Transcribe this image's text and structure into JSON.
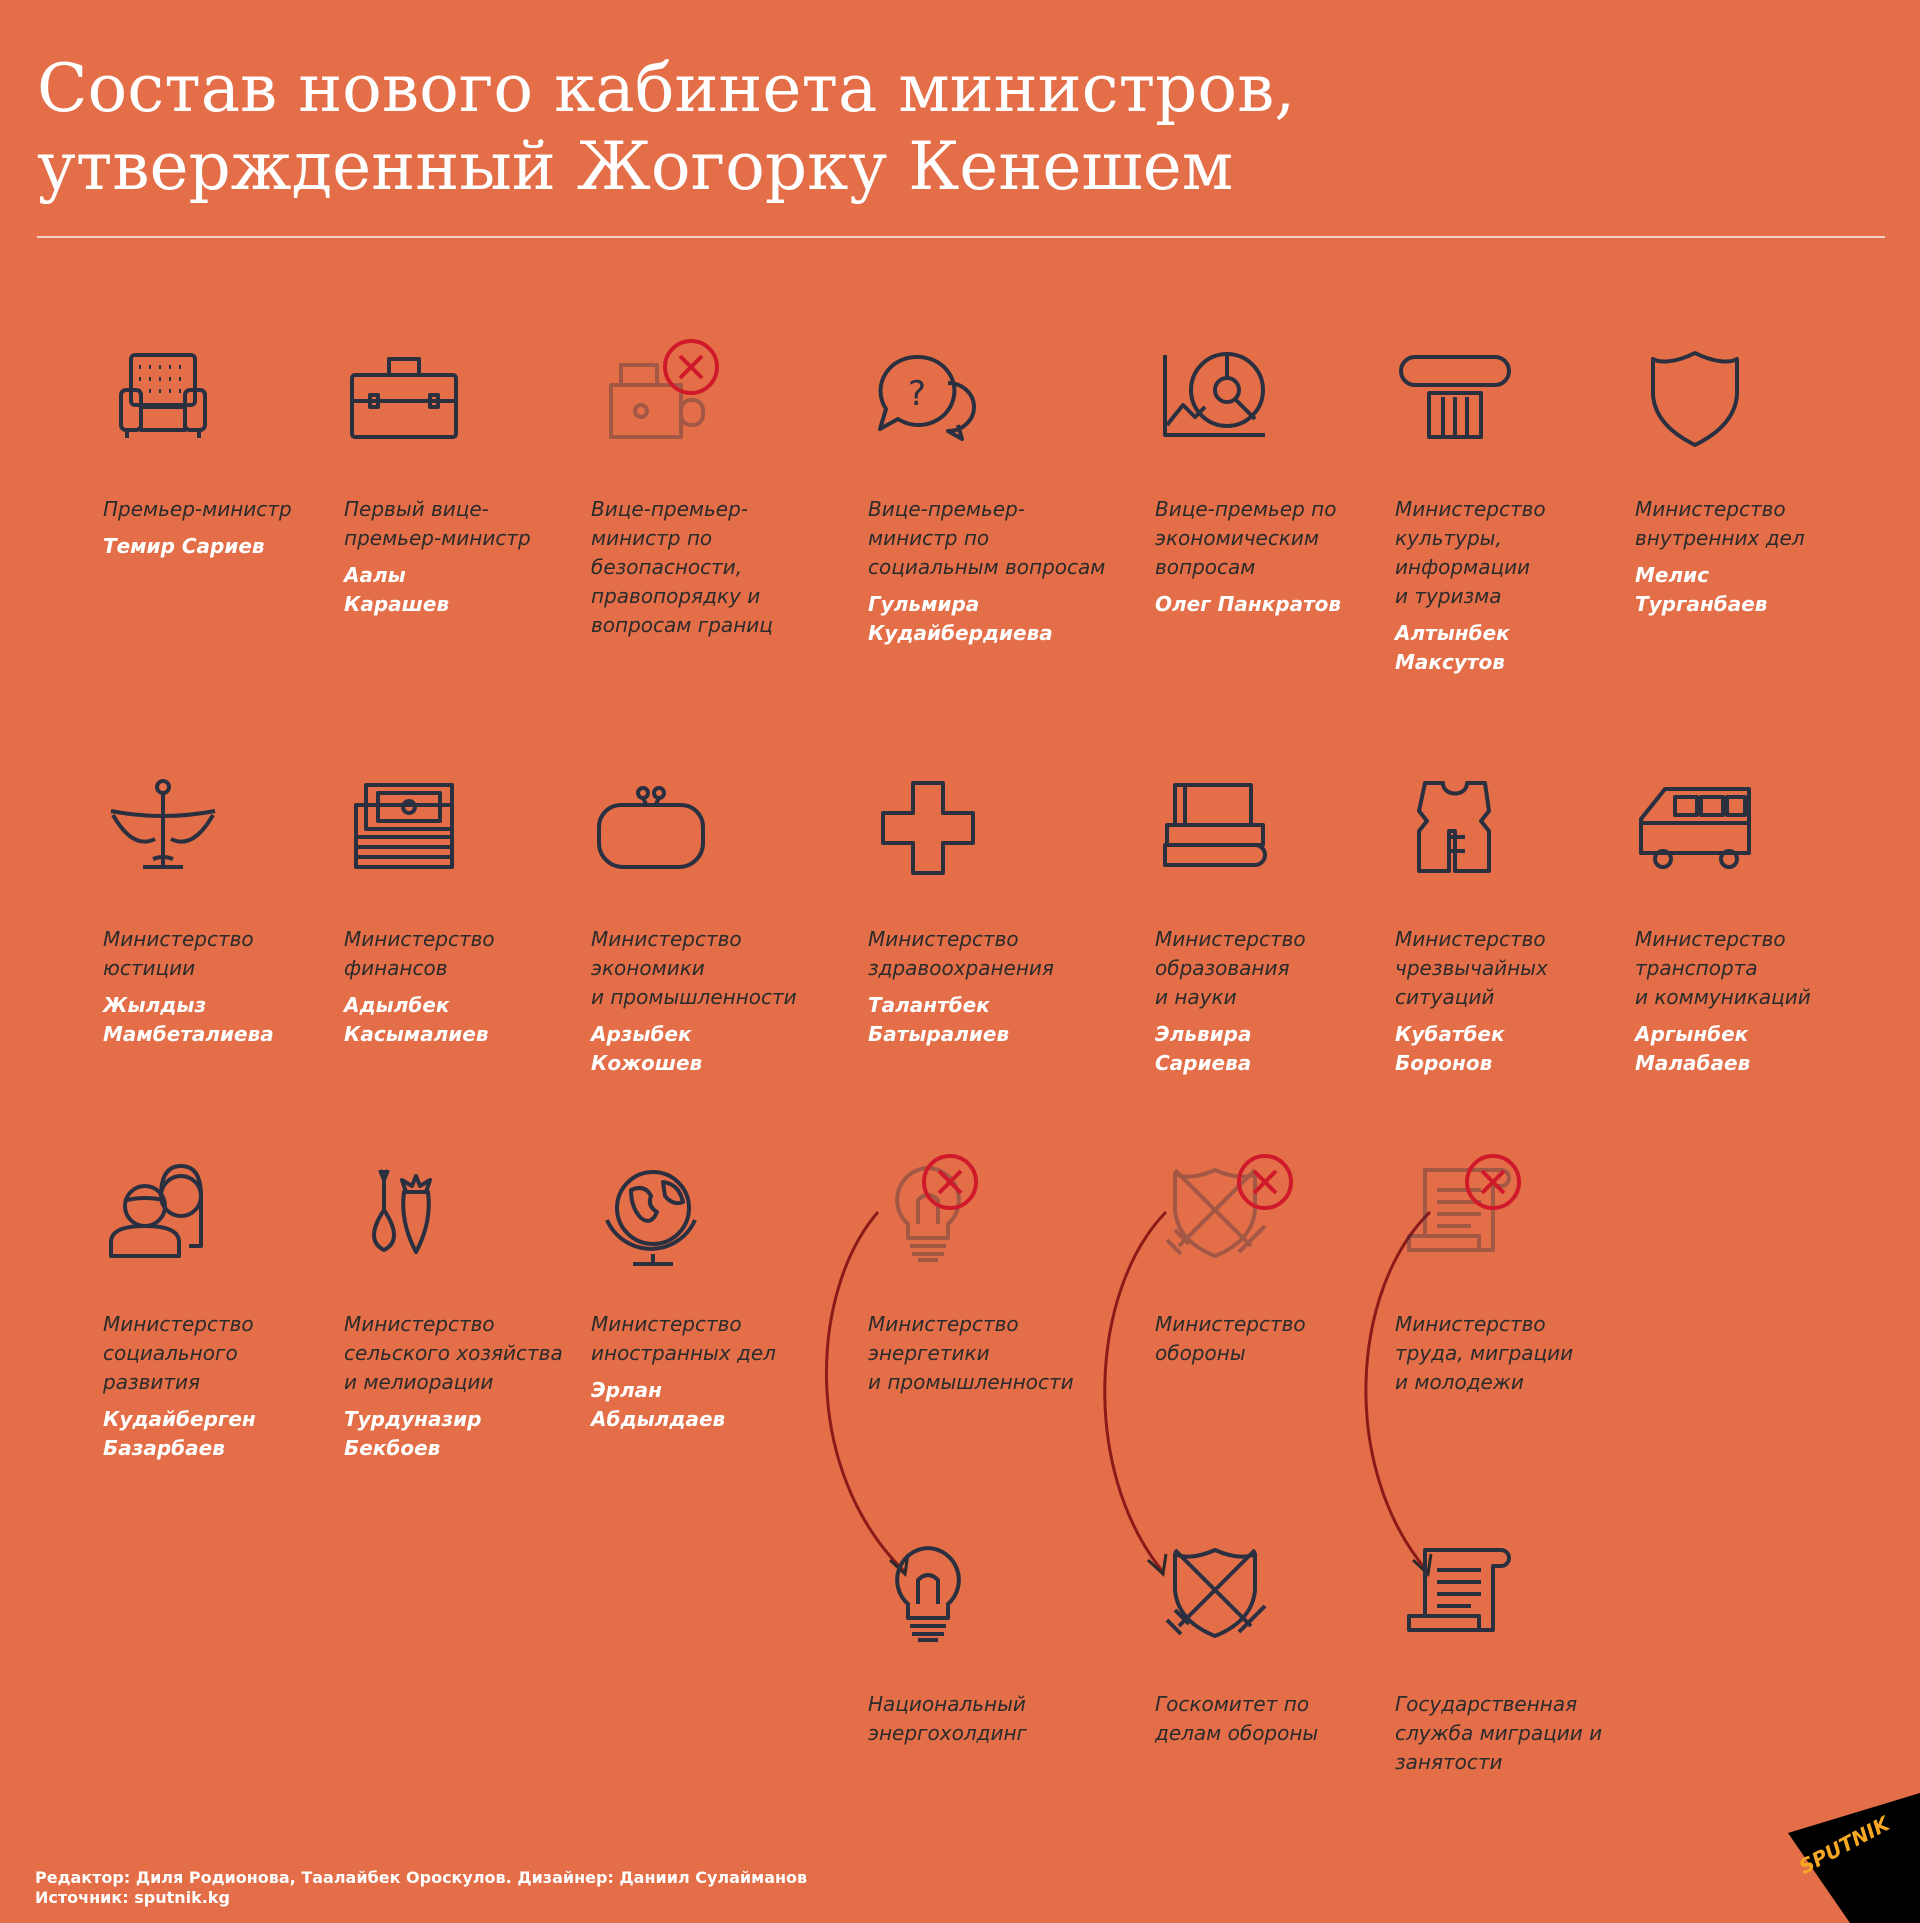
{
  "title": {
    "line1": "Состав нового кабинета министров,",
    "line2": "утвержденный Жогорку Кенешем"
  },
  "colors": {
    "background": "#E36E48",
    "icon": "#2b3040",
    "removed": "#d0192a",
    "arrow": "#8b1a1a"
  },
  "items": [
    {
      "icon": "armchair-icon",
      "label": "Премьер-министр",
      "name": "Темир Сариев"
    },
    {
      "icon": "briefcase-icon",
      "label": "Первый вице-\nпремьер-министр",
      "name": "Аалы\nКарашев"
    },
    {
      "icon": "camera-icon",
      "label": "Вице-премьер-\nминистр по\nбезопасности,\nправопорядку и\nвопросам границ",
      "name": "",
      "removed": true
    },
    {
      "icon": "chat-bubbles-icon",
      "label": "Вице-премьер-\nминистр по\nсоциальным вопросам",
      "name": "Гульмира\nКудайбердиева"
    },
    {
      "icon": "chart-icon",
      "label": "Вице-премьер по\nэкономическим\nвопросам",
      "name": "Олег Панкратов"
    },
    {
      "icon": "column-icon",
      "label": "Министерство\nкультуры,\nинформации\nи туризма",
      "name": "Алтынбек\nМаксутов"
    },
    {
      "icon": "shield-icon",
      "label": "Министерство\nвнутренних дел",
      "name": "Мелис\nТурганбаев"
    },
    {
      "icon": "scales-icon",
      "label": "Министерство\nюстиции",
      "name": "Жылдыз\nМамбеталиева"
    },
    {
      "icon": "money-stack-icon",
      "label": "Министерство\nфинансов",
      "name": "Адылбек\nКасымалиев"
    },
    {
      "icon": "purse-icon",
      "label": "Министерство\nэкономики\nи промышленности",
      "name": "Арзыбек\nКожошев"
    },
    {
      "icon": "medical-cross-icon",
      "label": "Министерство\nздравоохранения",
      "name": "Талантбек\nБатыралиев"
    },
    {
      "icon": "books-icon",
      "label": "Министерство\nобразования\nи науки",
      "name": "Эльвира\nСариева"
    },
    {
      "icon": "life-vest-icon",
      "label": "Министерство\nчрезвычайных\nситуаций",
      "name": "Кубатбек\nБоронов"
    },
    {
      "icon": "bus-icon",
      "label": "Министерство\nтранспорта\nи коммуникаций",
      "name": "Аргынбек\nМалабаев"
    },
    {
      "icon": "family-icon",
      "label": "Министерство\nсоциального\nразвития",
      "name": "Кудайберген\nБазарбаев"
    },
    {
      "icon": "vegetables-icon",
      "label": "Министерство\nсельского хозяйства\nи мелиорации",
      "name": "Турдуназир\nБекбоев"
    },
    {
      "icon": "globe-icon",
      "label": "Министерство\nиностранных дел",
      "name": "Эрлан\nАбдылдаев"
    },
    {
      "icon": "lightbulb-icon",
      "label": "Министерство\nэнергетики\nи промышленности",
      "name": "",
      "removed": true
    },
    {
      "icon": "crossed-swords-icon",
      "label": "Министерство\nобороны",
      "name": "",
      "removed": true
    },
    {
      "icon": "scroll-icon",
      "label": "Министерство\nтруда, миграции\nи молодежи",
      "name": "",
      "removed": true
    },
    {
      "icon": "lightbulb-icon",
      "label": "Национальный\nэнергохолдинг",
      "name": ""
    },
    {
      "icon": "crossed-swords-icon",
      "label": "Госкомитет по\nделам обороны",
      "name": ""
    },
    {
      "icon": "scroll-icon",
      "label": "Государственная\nслужба миграции и\nзанятости",
      "name": ""
    }
  ],
  "credits": {
    "line1": "Редактор: Диля Родионова, Таалайбек Орoскулов. Дизайнер: Даниил Сулайманов",
    "line2": "Источник: sputnik.kg"
  },
  "logo": {
    "text": "SPUTNIK"
  }
}
